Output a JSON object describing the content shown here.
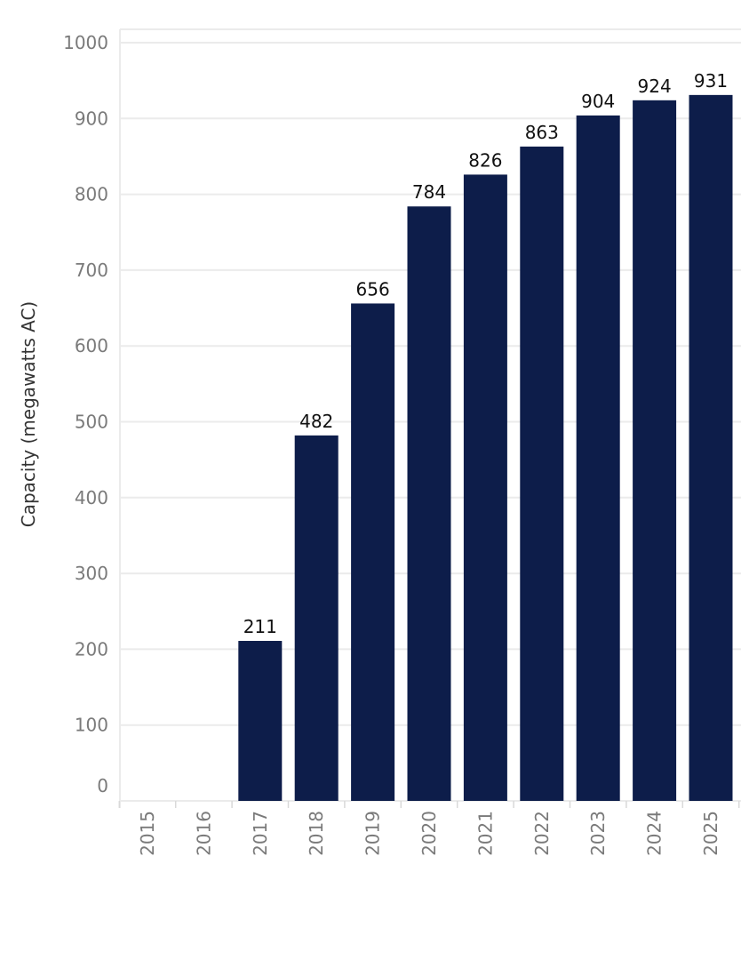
{
  "chart_data": {
    "type": "bar",
    "categories": [
      "2015",
      "2016",
      "2017",
      "2018",
      "2019",
      "2020",
      "2021",
      "2022",
      "2023",
      "2024",
      "2025"
    ],
    "values": [
      0,
      0,
      211,
      482,
      656,
      784,
      826,
      863,
      904,
      924,
      931
    ],
    "data_labels": [
      "",
      "",
      "211",
      "482",
      "656",
      "784",
      "826",
      "863",
      "904",
      "924",
      "931"
    ],
    "title": "",
    "xlabel": "",
    "ylabel": "Capacity (megawatts AC)",
    "ylim": [
      0,
      1000
    ],
    "yticks": [
      0,
      100,
      200,
      300,
      400,
      500,
      600,
      700,
      800,
      900,
      1000
    ],
    "grid": true,
    "bar_color": "#0d1d4a",
    "grid_color": "#ebebeb",
    "axis_color": "#d9d9d9"
  }
}
